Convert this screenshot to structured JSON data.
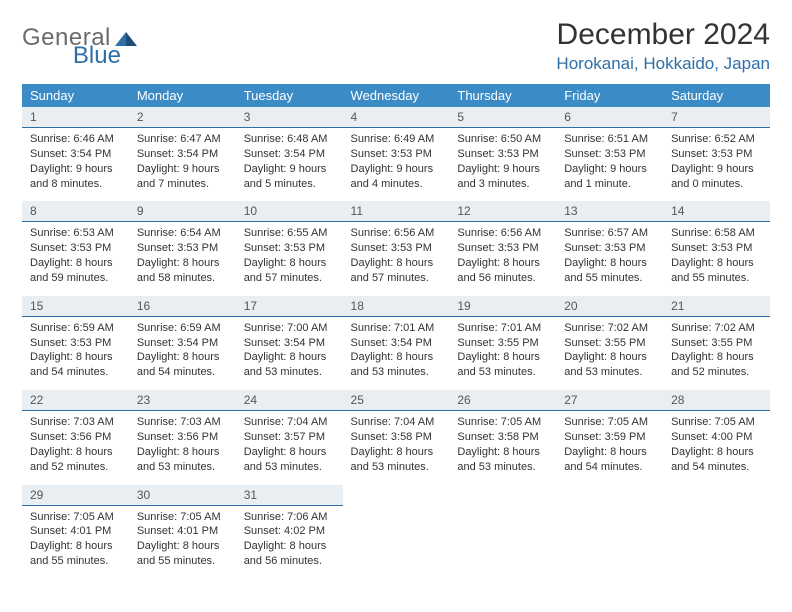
{
  "colors": {
    "header_bg": "#3b8bc6",
    "daynum_bg": "#e9eef2",
    "daynum_border": "#2f6fa8",
    "text": "#333333",
    "logo_gray": "#6b6b6b",
    "logo_blue": "#2f6fa8"
  },
  "typography": {
    "title_fontsize": 30,
    "location_fontsize": 17,
    "dow_fontsize": 13,
    "daynum_fontsize": 12,
    "body_fontsize": 11
  },
  "logo": {
    "part1": "General",
    "part2": "Blue"
  },
  "title": "December 2024",
  "location": "Horokanai, Hokkaido, Japan",
  "daysOfWeek": [
    "Sunday",
    "Monday",
    "Tuesday",
    "Wednesday",
    "Thursday",
    "Friday",
    "Saturday"
  ],
  "weeks": [
    [
      {
        "n": "1",
        "sr": "6:46 AM",
        "ss": "3:54 PM",
        "dl": "9 hours and 8 minutes."
      },
      {
        "n": "2",
        "sr": "6:47 AM",
        "ss": "3:54 PM",
        "dl": "9 hours and 7 minutes."
      },
      {
        "n": "3",
        "sr": "6:48 AM",
        "ss": "3:54 PM",
        "dl": "9 hours and 5 minutes."
      },
      {
        "n": "4",
        "sr": "6:49 AM",
        "ss": "3:53 PM",
        "dl": "9 hours and 4 minutes."
      },
      {
        "n": "5",
        "sr": "6:50 AM",
        "ss": "3:53 PM",
        "dl": "9 hours and 3 minutes."
      },
      {
        "n": "6",
        "sr": "6:51 AM",
        "ss": "3:53 PM",
        "dl": "9 hours and 1 minute."
      },
      {
        "n": "7",
        "sr": "6:52 AM",
        "ss": "3:53 PM",
        "dl": "9 hours and 0 minutes."
      }
    ],
    [
      {
        "n": "8",
        "sr": "6:53 AM",
        "ss": "3:53 PM",
        "dl": "8 hours and 59 minutes."
      },
      {
        "n": "9",
        "sr": "6:54 AM",
        "ss": "3:53 PM",
        "dl": "8 hours and 58 minutes."
      },
      {
        "n": "10",
        "sr": "6:55 AM",
        "ss": "3:53 PM",
        "dl": "8 hours and 57 minutes."
      },
      {
        "n": "11",
        "sr": "6:56 AM",
        "ss": "3:53 PM",
        "dl": "8 hours and 57 minutes."
      },
      {
        "n": "12",
        "sr": "6:56 AM",
        "ss": "3:53 PM",
        "dl": "8 hours and 56 minutes."
      },
      {
        "n": "13",
        "sr": "6:57 AM",
        "ss": "3:53 PM",
        "dl": "8 hours and 55 minutes."
      },
      {
        "n": "14",
        "sr": "6:58 AM",
        "ss": "3:53 PM",
        "dl": "8 hours and 55 minutes."
      }
    ],
    [
      {
        "n": "15",
        "sr": "6:59 AM",
        "ss": "3:53 PM",
        "dl": "8 hours and 54 minutes."
      },
      {
        "n": "16",
        "sr": "6:59 AM",
        "ss": "3:54 PM",
        "dl": "8 hours and 54 minutes."
      },
      {
        "n": "17",
        "sr": "7:00 AM",
        "ss": "3:54 PM",
        "dl": "8 hours and 53 minutes."
      },
      {
        "n": "18",
        "sr": "7:01 AM",
        "ss": "3:54 PM",
        "dl": "8 hours and 53 minutes."
      },
      {
        "n": "19",
        "sr": "7:01 AM",
        "ss": "3:55 PM",
        "dl": "8 hours and 53 minutes."
      },
      {
        "n": "20",
        "sr": "7:02 AM",
        "ss": "3:55 PM",
        "dl": "8 hours and 53 minutes."
      },
      {
        "n": "21",
        "sr": "7:02 AM",
        "ss": "3:55 PM",
        "dl": "8 hours and 52 minutes."
      }
    ],
    [
      {
        "n": "22",
        "sr": "7:03 AM",
        "ss": "3:56 PM",
        "dl": "8 hours and 52 minutes."
      },
      {
        "n": "23",
        "sr": "7:03 AM",
        "ss": "3:56 PM",
        "dl": "8 hours and 53 minutes."
      },
      {
        "n": "24",
        "sr": "7:04 AM",
        "ss": "3:57 PM",
        "dl": "8 hours and 53 minutes."
      },
      {
        "n": "25",
        "sr": "7:04 AM",
        "ss": "3:58 PM",
        "dl": "8 hours and 53 minutes."
      },
      {
        "n": "26",
        "sr": "7:05 AM",
        "ss": "3:58 PM",
        "dl": "8 hours and 53 minutes."
      },
      {
        "n": "27",
        "sr": "7:05 AM",
        "ss": "3:59 PM",
        "dl": "8 hours and 54 minutes."
      },
      {
        "n": "28",
        "sr": "7:05 AM",
        "ss": "4:00 PM",
        "dl": "8 hours and 54 minutes."
      }
    ],
    [
      {
        "n": "29",
        "sr": "7:05 AM",
        "ss": "4:01 PM",
        "dl": "8 hours and 55 minutes."
      },
      {
        "n": "30",
        "sr": "7:05 AM",
        "ss": "4:01 PM",
        "dl": "8 hours and 55 minutes."
      },
      {
        "n": "31",
        "sr": "7:06 AM",
        "ss": "4:02 PM",
        "dl": "8 hours and 56 minutes."
      },
      null,
      null,
      null,
      null
    ]
  ],
  "labels": {
    "sunrise": "Sunrise:",
    "sunset": "Sunset:",
    "daylight": "Daylight:"
  }
}
